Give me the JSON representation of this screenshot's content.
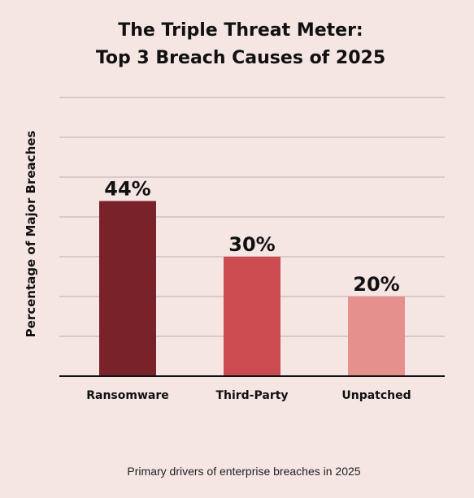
{
  "chart_data": {
    "type": "bar",
    "title": [
      "The Triple Threat Meter:",
      "Top 3 Breach Causes of 2025"
    ],
    "ylabel": "Percentage of Major Breaches",
    "xlabel": "",
    "categories": [
      "Ransomware",
      "Third-Party",
      "Unpatched"
    ],
    "values": [
      44,
      30,
      20
    ],
    "value_labels": [
      "44%",
      "30%",
      "20%"
    ],
    "ylim": [
      0,
      70
    ],
    "grid": true,
    "legend": "none",
    "colors": [
      "#7a2229",
      "#cc4b51",
      "#e6908e"
    ],
    "caption": "Primary drivers of enterprise breaches in 2025"
  }
}
